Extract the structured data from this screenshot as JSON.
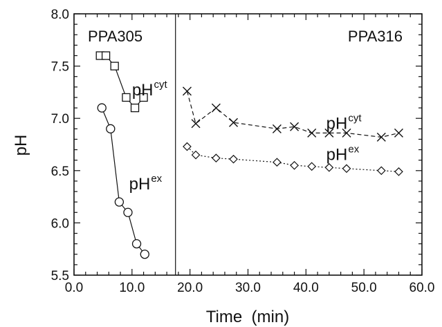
{
  "chart_data": {
    "type": "scatter",
    "xlabel": "Time  (min)",
    "ylabel": "pH",
    "xlim": [
      0,
      60
    ],
    "ylim": [
      5.5,
      8.0
    ],
    "x_ticks": [
      "0.0",
      "10.0",
      "20.0",
      "30.0",
      "40.0",
      "50.0",
      "60.0"
    ],
    "y_ticks": [
      "5.5",
      "6.0",
      "6.5",
      "7.0",
      "7.5",
      "8.0"
    ],
    "divider_x": 17.5,
    "panels": [
      {
        "label": "PPA305",
        "position": "top-left"
      },
      {
        "label": "PPA316",
        "position": "top-right"
      }
    ],
    "series": [
      {
        "marker": "square",
        "line": "solid",
        "x": [
          4.5,
          5.5,
          7.0,
          9.0,
          10.5,
          12.0
        ],
        "y": [
          7.6,
          7.6,
          7.5,
          7.2,
          7.1,
          7.2
        ]
      },
      {
        "marker": "circle",
        "line": "solid",
        "x": [
          4.8,
          6.3,
          7.8,
          9.3,
          10.8,
          12.2
        ],
        "y": [
          7.1,
          6.9,
          6.2,
          6.1,
          5.8,
          5.7
        ]
      },
      {
        "marker": "x",
        "line": "dashed",
        "x": [
          19.5,
          21.0,
          24.5,
          27.5,
          35.0,
          38.0,
          41.0,
          44.0,
          47.0,
          53.0,
          56.0
        ],
        "y": [
          7.26,
          6.95,
          7.1,
          6.96,
          6.9,
          6.92,
          6.86,
          6.86,
          6.86,
          6.82,
          6.86
        ]
      },
      {
        "marker": "diamond",
        "line": "dotted",
        "x": [
          19.5,
          21.0,
          24.5,
          27.5,
          35.0,
          38.0,
          41.0,
          44.0,
          47.0,
          53.0,
          56.0
        ],
        "y": [
          6.73,
          6.65,
          6.62,
          6.61,
          6.58,
          6.55,
          6.54,
          6.53,
          6.52,
          6.5,
          6.49
        ]
      }
    ],
    "annotations": [
      {
        "base": "pH",
        "sup": "cyt",
        "x": 10.0,
        "y": 7.22
      },
      {
        "base": "pH",
        "sup": "ex",
        "x": 9.5,
        "y": 6.32
      },
      {
        "base": "pH",
        "sup": "cyt",
        "x": 43.5,
        "y": 6.9
      },
      {
        "base": "pH",
        "sup": "ex",
        "x": 43.5,
        "y": 6.6
      }
    ]
  }
}
